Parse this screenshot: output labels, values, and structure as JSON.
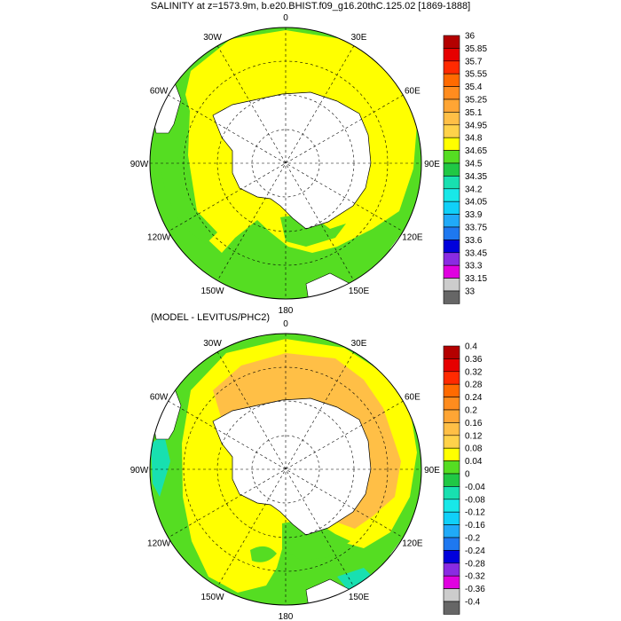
{
  "panels": [
    {
      "title": "SALINITY at z=1573.9m, b.e20.BHIST.f09_g16.20thC.125.02 [1869-1888]",
      "lon_labels": [
        "0",
        "30E",
        "60E",
        "90E",
        "120E",
        "150E",
        "180",
        "150W",
        "120W",
        "90W",
        "60W",
        "30W"
      ],
      "colorbar": {
        "labels": [
          "36",
          "35.85",
          "35.7",
          "35.55",
          "35.4",
          "35.25",
          "35.1",
          "34.95",
          "34.8",
          "34.65",
          "34.5",
          "34.35",
          "34.2",
          "34.05",
          "33.9",
          "33.75",
          "33.6",
          "33.45",
          "33.3",
          "33.15",
          "33"
        ],
        "colors": [
          "#b40000",
          "#e60000",
          "#ff2a00",
          "#ff6a00",
          "#ff8c1e",
          "#ffa534",
          "#ffbf46",
          "#ffd24a",
          "#ffff00",
          "#55dd22",
          "#20c845",
          "#18e0b0",
          "#18e8e8",
          "#10d0f8",
          "#20aaf8",
          "#1e78f0",
          "#0000dc",
          "#8a2be2",
          "#e000e0",
          "#cccccc",
          "#666666"
        ]
      }
    },
    {
      "title": "(MODEL - LEVITUS/PHC2)",
      "lon_labels": [
        "0",
        "30E",
        "60E",
        "90E",
        "120E",
        "150E",
        "180",
        "150W",
        "120W",
        "90W",
        "60W",
        "30W"
      ],
      "colorbar": {
        "labels": [
          "0.4",
          "0.36",
          "0.32",
          "0.28",
          "0.24",
          "0.2",
          "0.16",
          "0.12",
          "0.08",
          "0.04",
          "0",
          "-0.04",
          "-0.08",
          "-0.12",
          "-0.16",
          "-0.2",
          "-0.24",
          "-0.28",
          "-0.32",
          "-0.36",
          "-0.4"
        ],
        "colors": [
          "#b40000",
          "#e60000",
          "#ff2a00",
          "#ff6a00",
          "#ff8c1e",
          "#ffa534",
          "#ffbf46",
          "#ffd24a",
          "#ffff00",
          "#55dd22",
          "#20c845",
          "#18e0b0",
          "#18e8e8",
          "#10d0f8",
          "#20aaf8",
          "#1e78f0",
          "#0000dc",
          "#8a2be2",
          "#e000e0",
          "#cccccc",
          "#666666"
        ]
      }
    }
  ],
  "colors": {
    "land": "#ffffff",
    "panel1_main": "#ffff00",
    "panel1_edge": "#55dd22",
    "panel2_main": "#ffff00",
    "panel2_high": "#ffbf46",
    "panel2_low": "#55dd22",
    "panel2_lowest": "#18e0b0"
  }
}
